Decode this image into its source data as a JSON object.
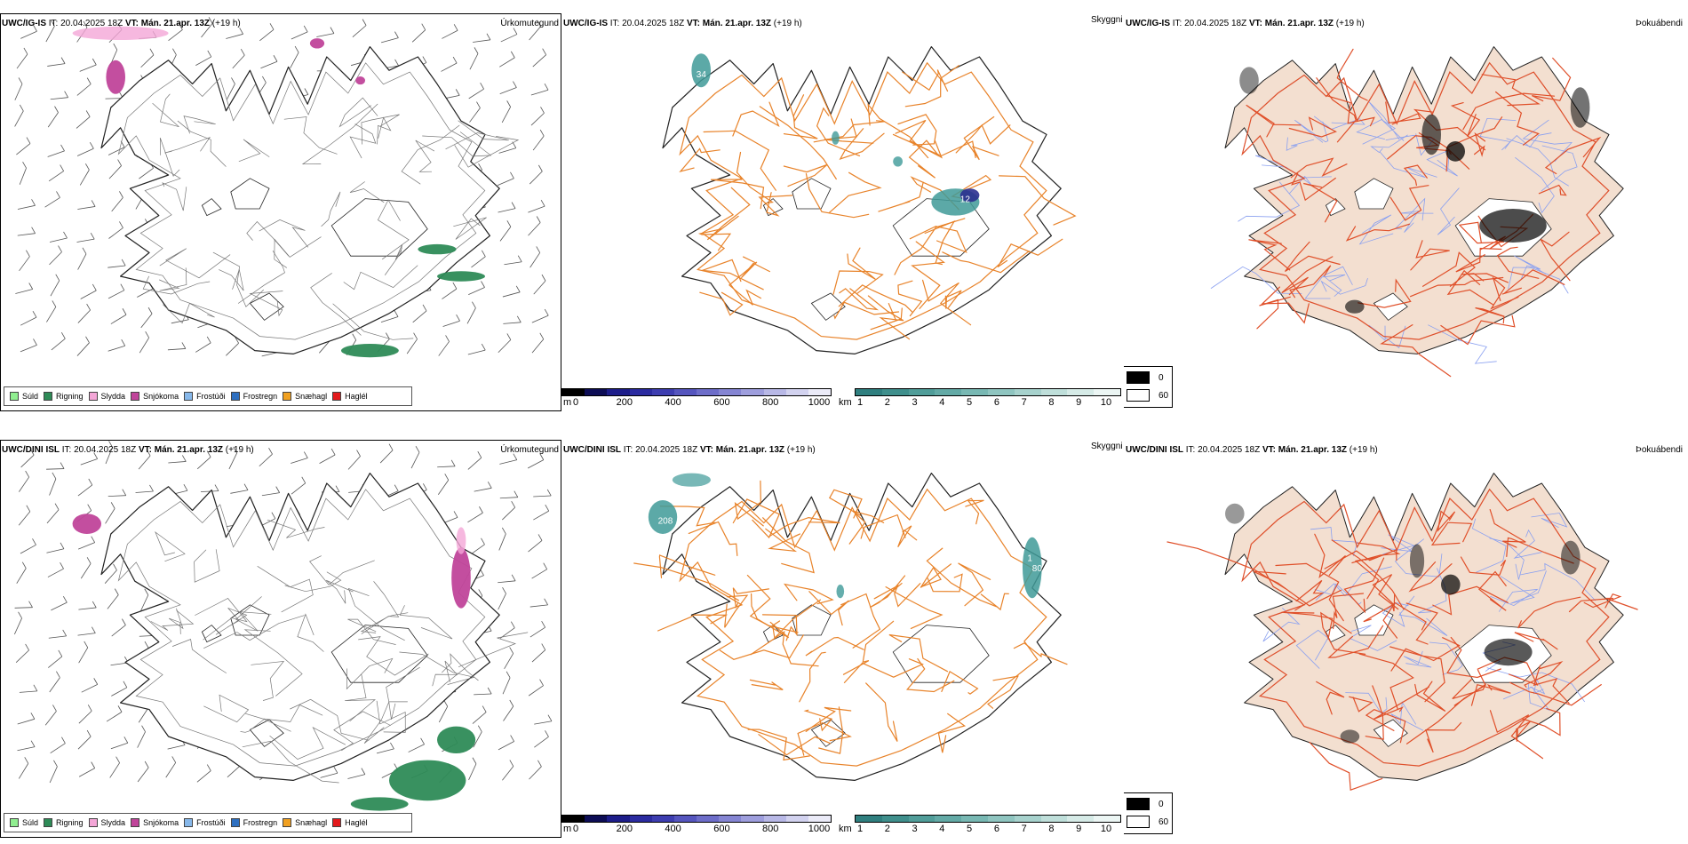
{
  "rows": [
    {
      "model_label": "UWC/IG-IS",
      "it_label": "IT:",
      "it_value": "20.04.2025 18Z",
      "vt_label": "VT:",
      "vt_value": "Mán. 21.apr. 13Z",
      "lead": "(+19 h)"
    },
    {
      "model_label": "UWC/DINI ISL",
      "it_label": "IT:",
      "it_value": "20.04.2025 18Z",
      "vt_label": "VT:",
      "vt_value": "Mán. 21.apr. 13Z",
      "lead": "(+19 h)"
    }
  ],
  "panel_titles": {
    "precip": "Úrkomutegund",
    "visibility": "Skyggni",
    "fog": "Þokuábendi"
  },
  "precip_legend": [
    {
      "label": "Súld",
      "color": "#90ee90"
    },
    {
      "label": "Rigning",
      "color": "#2e8b57"
    },
    {
      "label": "Slydda",
      "color": "#f4a6d7"
    },
    {
      "label": "Snjókoma",
      "color": "#c0449a"
    },
    {
      "label": "Frostúði",
      "color": "#87b8ea"
    },
    {
      "label": "Frostregn",
      "color": "#2d6fc0"
    },
    {
      "label": "Snæhagl",
      "color": "#f0a020"
    },
    {
      "label": "Haglél",
      "color": "#e31a1c"
    }
  ],
  "elevation_bar": {
    "unit": "m",
    "ticks": [
      "0",
      "200",
      "400",
      "600",
      "800",
      "1000"
    ],
    "colors": [
      "#000000",
      "#0d0d55",
      "#1d1d8a",
      "#2b2ba0",
      "#3d3db0",
      "#5555be",
      "#6d6dc9",
      "#8585d3",
      "#9e9edd",
      "#b8b8e6",
      "#d2d2ef",
      "#ebebf8"
    ]
  },
  "visibility_bar": {
    "unit": "km",
    "ticks": [
      "1",
      "2",
      "3",
      "4",
      "5",
      "6",
      "7",
      "8",
      "9",
      "10"
    ],
    "colors": [
      "#2f7f7f",
      "#3f8f8c",
      "#509d99",
      "#63aaa6",
      "#78b8b3",
      "#8fc5c0",
      "#a7d2cd",
      "#bfdfda",
      "#d6ebe7",
      "#ecf6f4"
    ]
  },
  "fog_legend": {
    "high": "0",
    "low": "60"
  },
  "map_labels": {
    "ig_vis_a": "34",
    "ig_vis_b": "12",
    "dini_vis_a": "208",
    "dini_vis_b": "1",
    "dini_vis_c": "80"
  },
  "colors": {
    "coast": "#222222",
    "roads_vis": "#e8832a",
    "roads_fog": "#e0502a",
    "land_fog": "#f3dfd0",
    "rivers": "#8aa0f0",
    "rain": "#2e8b57",
    "snow": "#c0449a",
    "sleet": "#f4a6d7",
    "vis_teal": "#3f9a98",
    "vis_navy": "#2a2f8f"
  }
}
